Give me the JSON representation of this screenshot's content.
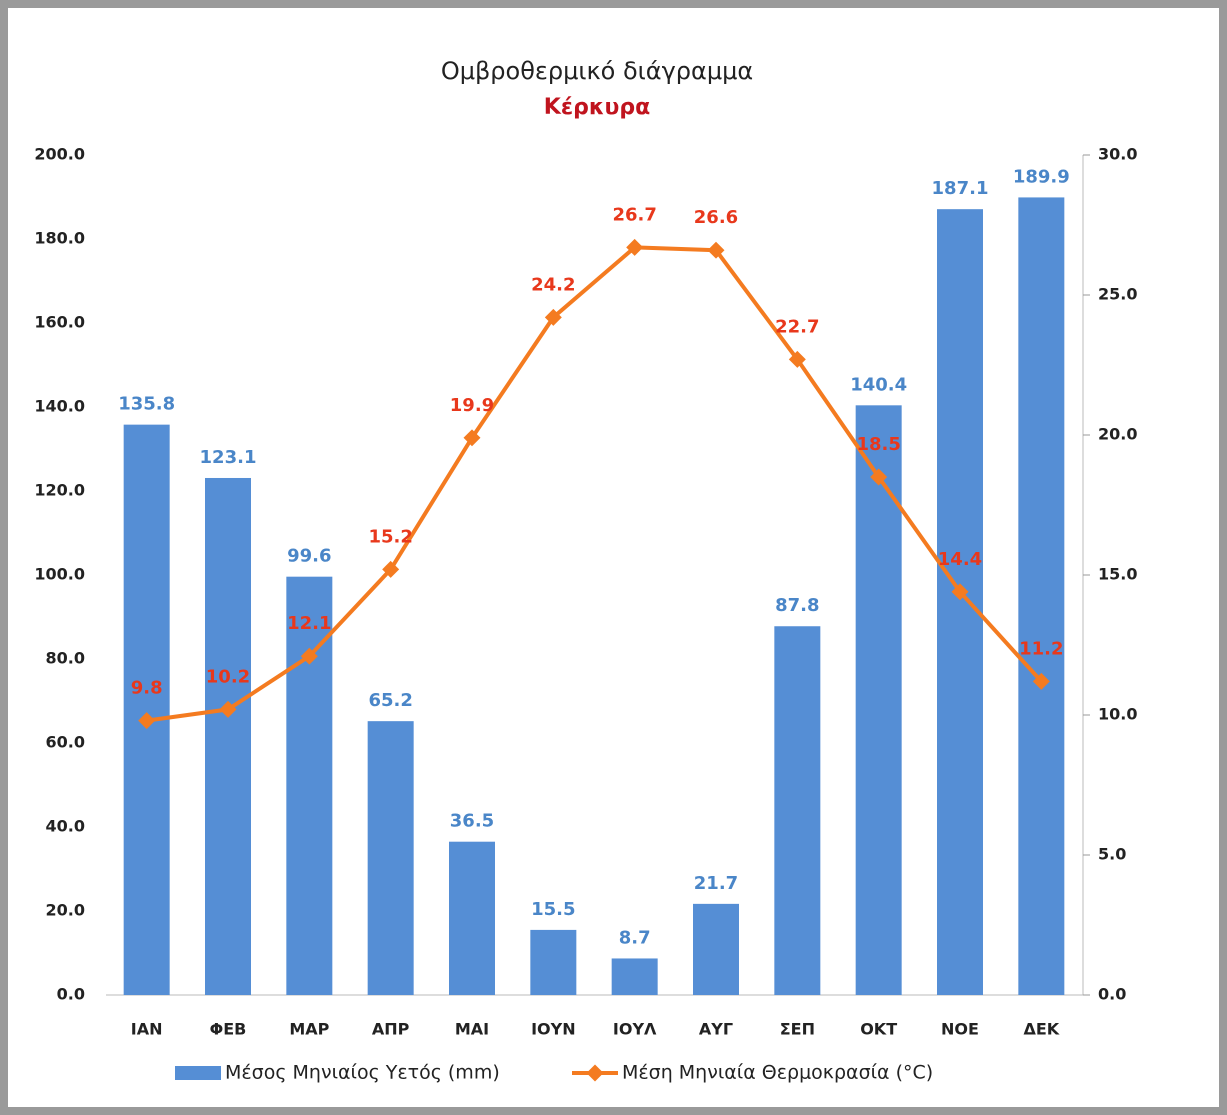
{
  "chart_data": {
    "type": "bar",
    "title": "Ομβροθερμικό διάγραμμα",
    "subtitle": "Κέρκυρα",
    "categories": [
      "ΙΑΝ",
      "ΦΕΒ",
      "ΜΑΡ",
      "ΑΠΡ",
      "ΜΑΙ",
      "ΙΟΥΝ",
      "ΙΟΥΛ",
      "ΑΥΓ",
      "ΣΕΠ",
      "ΟΚΤ",
      "ΝΟΕ",
      "ΔΕΚ"
    ],
    "series": [
      {
        "name": "Μέσος Μηνιαίος Υετός (mm)",
        "type": "bar",
        "color": "#558ed5",
        "label_color": "#4a86c8",
        "values": [
          135.8,
          123.1,
          99.6,
          65.2,
          36.5,
          15.5,
          8.7,
          21.7,
          87.8,
          140.4,
          187.1,
          189.9
        ]
      },
      {
        "name": "Μέση Μηνιαία Θερμοκρασία (°C)",
        "type": "line",
        "axis": "y2",
        "color": "#f47b20",
        "label_color": "#e8381c",
        "values": [
          9.8,
          10.2,
          12.1,
          15.2,
          19.9,
          24.2,
          26.7,
          26.6,
          22.7,
          18.5,
          14.4,
          11.2
        ]
      }
    ],
    "ylim": [
      0,
      200
    ],
    "yticks": [
      {
        "value": 0,
        "label": "0.0"
      },
      {
        "value": 20,
        "label": "20.0"
      },
      {
        "value": 40,
        "label": "40.0"
      },
      {
        "value": 60,
        "label": "60.0"
      },
      {
        "value": 80,
        "label": "80.0"
      },
      {
        "value": 100,
        "label": "100.0"
      },
      {
        "value": 120,
        "label": "120.0"
      },
      {
        "value": 140,
        "label": "140.0"
      },
      {
        "value": 160,
        "label": "160.0"
      },
      {
        "value": 180,
        "label": "180.0"
      },
      {
        "value": 200,
        "label": "200.0"
      }
    ],
    "y2lim": [
      0,
      30
    ],
    "y2ticks": [
      {
        "value": 0,
        "label": "0.0"
      },
      {
        "value": 5,
        "label": "5.0"
      },
      {
        "value": 10,
        "label": "10.0"
      },
      {
        "value": 15,
        "label": "15.0"
      },
      {
        "value": 20,
        "label": "20.0"
      },
      {
        "value": 25,
        "label": "25.0"
      },
      {
        "value": 30,
        "label": "30.0"
      }
    ],
    "legend": "bottom"
  }
}
